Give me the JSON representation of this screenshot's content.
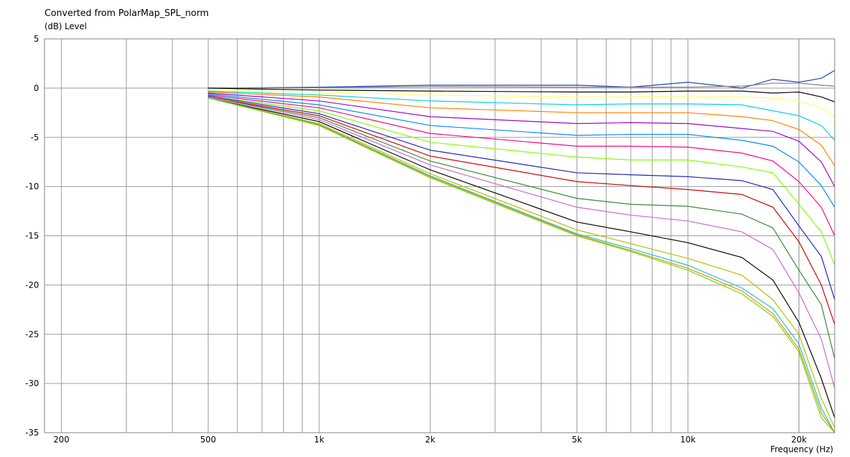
{
  "title": "Converted from PolarMap_SPL_norm",
  "y_unit_label": "(dB)  Level",
  "x_axis_label": "Frequency  (Hz)",
  "chart_data": {
    "type": "line",
    "title": "Converted from PolarMap_SPL_norm",
    "ylabel": "(dB)  Level",
    "xlabel": "Frequency  (Hz)",
    "xscale": "log",
    "xlim": [
      180,
      25000
    ],
    "ylim": [
      -35,
      5
    ],
    "grid": true,
    "x_ticks": [
      {
        "v": 200,
        "label": "200"
      },
      {
        "v": 500,
        "label": "500"
      },
      {
        "v": 1000,
        "label": "1k"
      },
      {
        "v": 2000,
        "label": "2k"
      },
      {
        "v": 5000,
        "label": "5k"
      },
      {
        "v": 10000,
        "label": "10k"
      },
      {
        "v": 20000,
        "label": "20k"
      }
    ],
    "y_ticks": [
      {
        "v": 5,
        "label": "5"
      },
      {
        "v": 0,
        "label": "0"
      },
      {
        "v": -5,
        "label": "-5"
      },
      {
        "v": -10,
        "label": "-10"
      },
      {
        "v": -15,
        "label": "-15"
      },
      {
        "v": -20,
        "label": "-20"
      },
      {
        "v": -25,
        "label": "-25"
      },
      {
        "v": -30,
        "label": "-30"
      },
      {
        "v": -35,
        "label": "-35"
      }
    ],
    "x": [
      500,
      1000,
      2000,
      5000,
      7000,
      10000,
      14000,
      17000,
      20000,
      23000,
      25000
    ],
    "series": [
      {
        "color": "#1f3fbf",
        "values": [
          0.0,
          0.1,
          0.3,
          0.3,
          0.1,
          0.6,
          0.0,
          0.9,
          0.6,
          1.0,
          1.8
        ]
      },
      {
        "color": "#808080",
        "values": [
          0.0,
          0.05,
          0.15,
          0.1,
          0.1,
          0.1,
          0.2,
          0.5,
          0.5,
          0.3,
          0.2
        ]
      },
      {
        "color": "#000000",
        "values": [
          0.0,
          -0.2,
          -0.3,
          -0.4,
          -0.4,
          -0.3,
          -0.3,
          -0.5,
          -0.4,
          -0.9,
          -1.4
        ]
      },
      {
        "color": "#ffff66",
        "values": [
          -0.2,
          -0.4,
          -0.7,
          -0.9,
          -0.9,
          -0.8,
          -0.9,
          -1.0,
          -1.3,
          -2.0,
          -3.0
        ]
      },
      {
        "color": "#00cfdf",
        "values": [
          -0.3,
          -0.7,
          -1.3,
          -1.7,
          -1.6,
          -1.6,
          -1.7,
          -2.3,
          -2.8,
          -3.8,
          -5.3
        ]
      },
      {
        "color": "#ff8000",
        "values": [
          -0.4,
          -0.9,
          -2.0,
          -2.5,
          -2.5,
          -2.5,
          -2.9,
          -3.3,
          -4.2,
          -5.8,
          -7.9
        ]
      },
      {
        "color": "#9900cc",
        "values": [
          -0.5,
          -1.3,
          -2.9,
          -3.6,
          -3.5,
          -3.6,
          -4.1,
          -4.4,
          -5.4,
          -7.5,
          -10.0
        ]
      },
      {
        "color": "#0088ff",
        "values": [
          -0.6,
          -1.7,
          -3.8,
          -4.8,
          -4.7,
          -4.7,
          -5.3,
          -5.9,
          -7.5,
          -9.9,
          -12.1
        ]
      },
      {
        "color": "#ff0080",
        "values": [
          -0.7,
          -2.0,
          -4.6,
          -5.9,
          -5.9,
          -6.0,
          -6.6,
          -7.4,
          -9.5,
          -12.1,
          -15.0
        ]
      },
      {
        "color": "#80ff00",
        "values": [
          -0.8,
          -2.3,
          -5.5,
          -7.0,
          -7.3,
          -7.3,
          -8.0,
          -8.6,
          -11.8,
          -14.6,
          -18.0
        ]
      },
      {
        "color": "#1f1fbf",
        "values": [
          -0.8,
          -2.6,
          -6.3,
          -8.6,
          -8.8,
          -9.0,
          -9.4,
          -10.3,
          -14.0,
          -17.1,
          -21.5
        ]
      },
      {
        "color": "#cc0000",
        "values": [
          -0.9,
          -2.8,
          -6.9,
          -9.5,
          -9.9,
          -10.3,
          -10.8,
          -12.1,
          -15.6,
          -20.0,
          -24.0
        ]
      },
      {
        "color": "#338833",
        "values": [
          -0.9,
          -3.0,
          -7.4,
          -11.2,
          -11.8,
          -12.0,
          -12.8,
          -14.2,
          -18.5,
          -22.0,
          -27.5
        ]
      },
      {
        "color": "#cc66cc",
        "values": [
          -0.9,
          -3.2,
          -7.8,
          -12.1,
          -12.9,
          -13.5,
          -14.6,
          -16.4,
          -20.8,
          -25.5,
          -30.5
        ]
      },
      {
        "color": "#000000",
        "values": [
          -1.0,
          -3.4,
          -8.3,
          -13.6,
          -14.6,
          -15.7,
          -17.2,
          -19.5,
          -23.8,
          -29.5,
          -33.5
        ]
      },
      {
        "color": "#bbbb00",
        "values": [
          -1.0,
          -3.6,
          -8.7,
          -14.4,
          -15.8,
          -17.3,
          -19.0,
          -21.5,
          -25.0,
          -31.5,
          -34.5
        ]
      },
      {
        "color": "#00cccc",
        "values": [
          -1.0,
          -3.7,
          -8.9,
          -14.8,
          -16.3,
          -18.0,
          -20.3,
          -22.4,
          -26.0,
          -32.5,
          -35.0
        ]
      },
      {
        "color": "#ff8000",
        "values": [
          -1.0,
          -3.75,
          -9.0,
          -14.9,
          -16.5,
          -18.3,
          -20.6,
          -22.9,
          -26.5,
          -33.0,
          -35.0
        ]
      },
      {
        "color": "#66dd00",
        "values": [
          -1.0,
          -3.8,
          -9.1,
          -15.0,
          -16.6,
          -18.5,
          -20.9,
          -23.2,
          -26.8,
          -33.5,
          -35.0
        ]
      }
    ]
  }
}
